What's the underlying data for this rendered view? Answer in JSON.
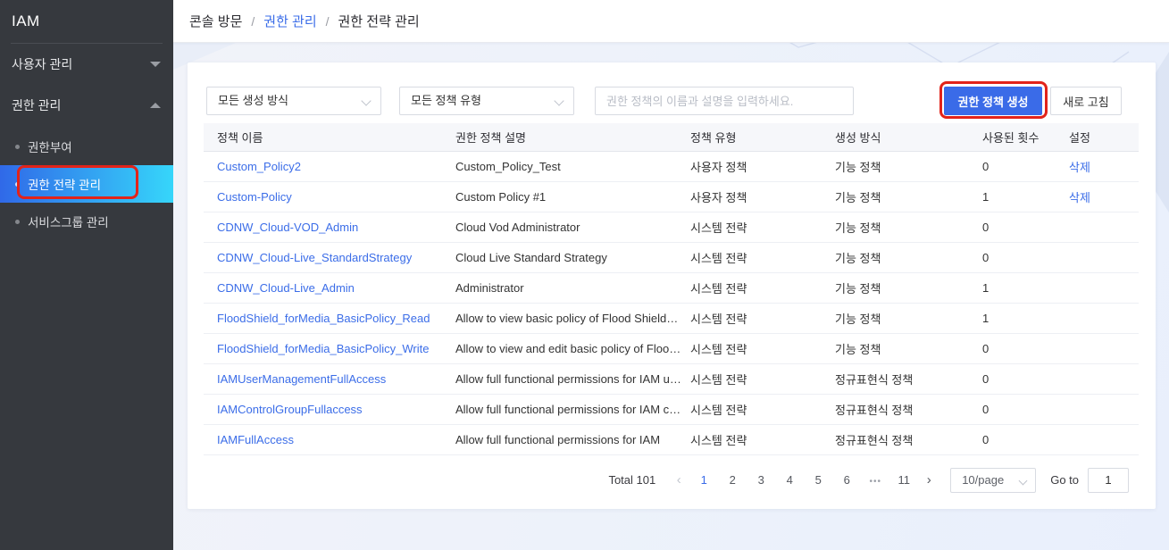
{
  "sidebar": {
    "title": "IAM",
    "groups": [
      {
        "label": "사용자 관리",
        "state": "collapsed"
      },
      {
        "label": "권한 관리",
        "state": "expanded"
      }
    ],
    "sub_items": [
      {
        "label": "권한부여",
        "active": false
      },
      {
        "label": "권한 전략 관리",
        "active": true
      },
      {
        "label": "서비스그룹 관리",
        "active": false
      }
    ]
  },
  "breadcrumb": {
    "separator": "/",
    "items": [
      "콘솔 방문",
      "권한 관리",
      "권한 전략 관리"
    ]
  },
  "filters": {
    "creation_method_select": "모든 생성 방식",
    "policy_type_select": "모든 정책 유형",
    "search_placeholder": "권한 정책의 이름과 설명을 입력하세요."
  },
  "actions": {
    "create_button": "권한 정책 생성",
    "refresh_button": "새로 고침"
  },
  "table": {
    "columns": [
      "정책 이름",
      "권한 정책 설명",
      "정책 유형",
      "생성 방식",
      "사용된 횟수",
      "설정"
    ],
    "rows": [
      {
        "name": "Custom_Policy2",
        "description": "Custom_Policy_Test",
        "type": "사용자 정책",
        "method": "기능 정책",
        "used_count": "0",
        "action": "삭제"
      },
      {
        "name": "Custom-Policy",
        "description": "Custom Policy #1",
        "type": "사용자 정책",
        "method": "기능 정책",
        "used_count": "1",
        "action": "삭제"
      },
      {
        "name": "CDNW_Cloud-VOD_Admin",
        "description": "Cloud Vod Administrator",
        "type": "시스템 전략",
        "method": "기능 정책",
        "used_count": "0",
        "action": ""
      },
      {
        "name": "CDNW_Cloud-Live_StandardStrategy",
        "description": "Cloud Live Standard Strategy",
        "type": "시스템 전략",
        "method": "기능 정책",
        "used_count": "0",
        "action": ""
      },
      {
        "name": "CDNW_Cloud-Live_Admin",
        "description": "Administrator",
        "type": "시스템 전략",
        "method": "기능 정책",
        "used_count": "1",
        "action": ""
      },
      {
        "name": "FloodShield_forMedia_BasicPolicy_Read",
        "description": "Allow to view basic policy of Flood Shield(f...",
        "type": "시스템 전략",
        "method": "기능 정책",
        "used_count": "1",
        "action": ""
      },
      {
        "name": "FloodShield_forMedia_BasicPolicy_Write",
        "description": "Allow to view and edit basic policy of Flood...",
        "type": "시스템 전략",
        "method": "기능 정책",
        "used_count": "0",
        "action": ""
      },
      {
        "name": "IAMUserManagementFullAccess",
        "description": "Allow full functional permissions for IAM us...",
        "type": "시스템 전략",
        "method": "정규표현식 정책",
        "used_count": "0",
        "action": ""
      },
      {
        "name": "IAMControlGroupFullaccess",
        "description": "Allow full functional permissions for IAM co...",
        "type": "시스템 전략",
        "method": "정규표현식 정책",
        "used_count": "0",
        "action": ""
      },
      {
        "name": "IAMFullAccess",
        "description": "Allow full functional permissions for IAM",
        "type": "시스템 전략",
        "method": "정규표현식 정책",
        "used_count": "0",
        "action": ""
      }
    ]
  },
  "pagination": {
    "total_label": "Total 101",
    "prev_icon": "‹",
    "next_icon": "›",
    "pages": [
      "1",
      "2",
      "3",
      "4",
      "5",
      "6",
      "•••",
      "11"
    ],
    "active_page": "1",
    "page_size": "10/page",
    "goto_label": "Go to",
    "goto_value": "1"
  },
  "colors": {
    "accent_blue": "#3a6be8",
    "link_blue": "#3b6de8",
    "annotation_red": "#e2231a",
    "sidebar_bg": "#36393e",
    "selected_gradient_start": "#3069e8",
    "selected_gradient_end": "#36d6fa"
  }
}
